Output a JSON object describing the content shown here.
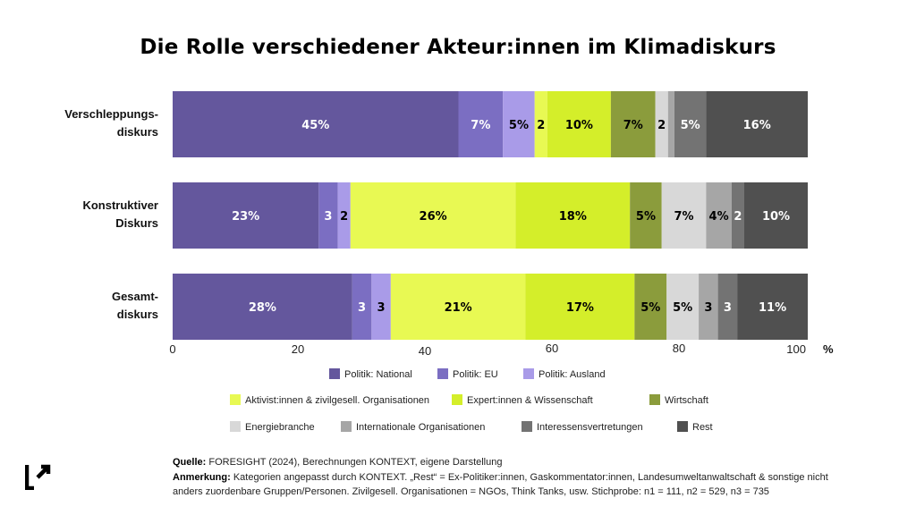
{
  "title": "Die Rolle verschiedener Akteur:innen im Klimadiskurs",
  "colors": {
    "Politik: National": "#64579d",
    "Politik: EU": "#7b6ec2",
    "Politik: Ausland": "#a99be8",
    "Aktivist:innen & zivilgesell. Organisationen": "#e8f953",
    "Expert:innen & Wissenschaft": "#d4ee2a",
    "Wirtschaft": "#8b9c3c",
    "Energiebranche": "#d8d8d8",
    "Internationale Organisationen": "#a6a6a6",
    "Interessensvertretungen": "#737373",
    "Rest": "#505050"
  },
  "chart_data": {
    "type": "bar",
    "orientation": "horizontal",
    "stacked": true,
    "title": "Die Rolle verschiedener Akteur:innen im Klimadiskurs",
    "categories": [
      [
        "Verschleppungs-",
        "diskurs"
      ],
      [
        "Konstruktiver",
        "Diskurs"
      ],
      [
        "Gesamt-",
        "diskurs"
      ]
    ],
    "series": [
      {
        "name": "Politik: National",
        "values": [
          45,
          23,
          28
        ],
        "labels": [
          "45%",
          "23%",
          "28%"
        ],
        "label_color": "#ffffff"
      },
      {
        "name": "Politik: EU",
        "values": [
          7,
          3,
          3
        ],
        "labels": [
          "7%",
          "3",
          "3"
        ],
        "label_color": "#ffffff"
      },
      {
        "name": "Politik: Ausland",
        "values": [
          5,
          2,
          3
        ],
        "labels": [
          "5%",
          "2",
          "3"
        ],
        "label_color": "#000000"
      },
      {
        "name": "Aktivist:innen & zivilgesell. Organisationen",
        "values": [
          2,
          26,
          21
        ],
        "labels": [
          "2",
          "26%",
          "21%"
        ],
        "label_color": "#000000"
      },
      {
        "name": "Expert:innen & Wissenschaft",
        "values": [
          10,
          18,
          17
        ],
        "labels": [
          "10%",
          "18%",
          "17%"
        ],
        "label_color": "#000000"
      },
      {
        "name": "Wirtschaft",
        "values": [
          7,
          5,
          5
        ],
        "labels": [
          "7%",
          "5%",
          "5%"
        ],
        "label_color": "#000000"
      },
      {
        "name": "Energiebranche",
        "values": [
          2,
          7,
          5
        ],
        "labels": [
          "2",
          "7%",
          "5%"
        ],
        "label_color": "#000000"
      },
      {
        "name": "Internationale Organisationen",
        "values": [
          1,
          4,
          3
        ],
        "labels": [
          "",
          "4%",
          "3"
        ],
        "label_color": "#000000"
      },
      {
        "name": "Interessensvertretungen",
        "values": [
          5,
          2,
          3
        ],
        "labels": [
          "5%",
          "2",
          "3"
        ],
        "label_color": "#ffffff"
      },
      {
        "name": "Rest",
        "values": [
          16,
          10,
          11
        ],
        "labels": [
          "16%",
          "10%",
          "11%"
        ],
        "label_color": "#ffffff"
      }
    ],
    "xlim": [
      0,
      100
    ],
    "xticks": [
      "0",
      "20",
      "40",
      "60",
      "80",
      "100"
    ],
    "xunit": "%",
    "legend_rows": [
      [
        "Politik: National",
        "Politik: EU",
        "Politik: Ausland"
      ],
      [
        "Aktivist:innen & zivilgesell. Organisationen",
        "Expert:innen & Wissenschaft",
        "Wirtschaft"
      ],
      [
        "Energiebranche",
        "Internationale Organisationen",
        "Interessensvertretungen",
        "Rest"
      ]
    ],
    "legend_placement": "bottom",
    "grid": false
  },
  "source": {
    "label": "Quelle:",
    "text": "FORESIGHT (2024), Berechnungen KONTEXT, eigene Darstellung"
  },
  "remark": {
    "label": "Anmerkung:",
    "text1": "Kategorien angepasst durch KONTEXT. „Rest“ = Ex-Politiker:innen, Gaskommentator:innen, Landesumweltanwaltschaft & sonstige nicht",
    "text2": "anders zuordenbare Gruppen/Personen.  Zivilgesell. Organisationen = NGOs, Think Tanks, usw. Stichprobe: n1 = 111, n2 = 529, n3 = 735"
  },
  "logo_icon": "kontext-logo-icon"
}
